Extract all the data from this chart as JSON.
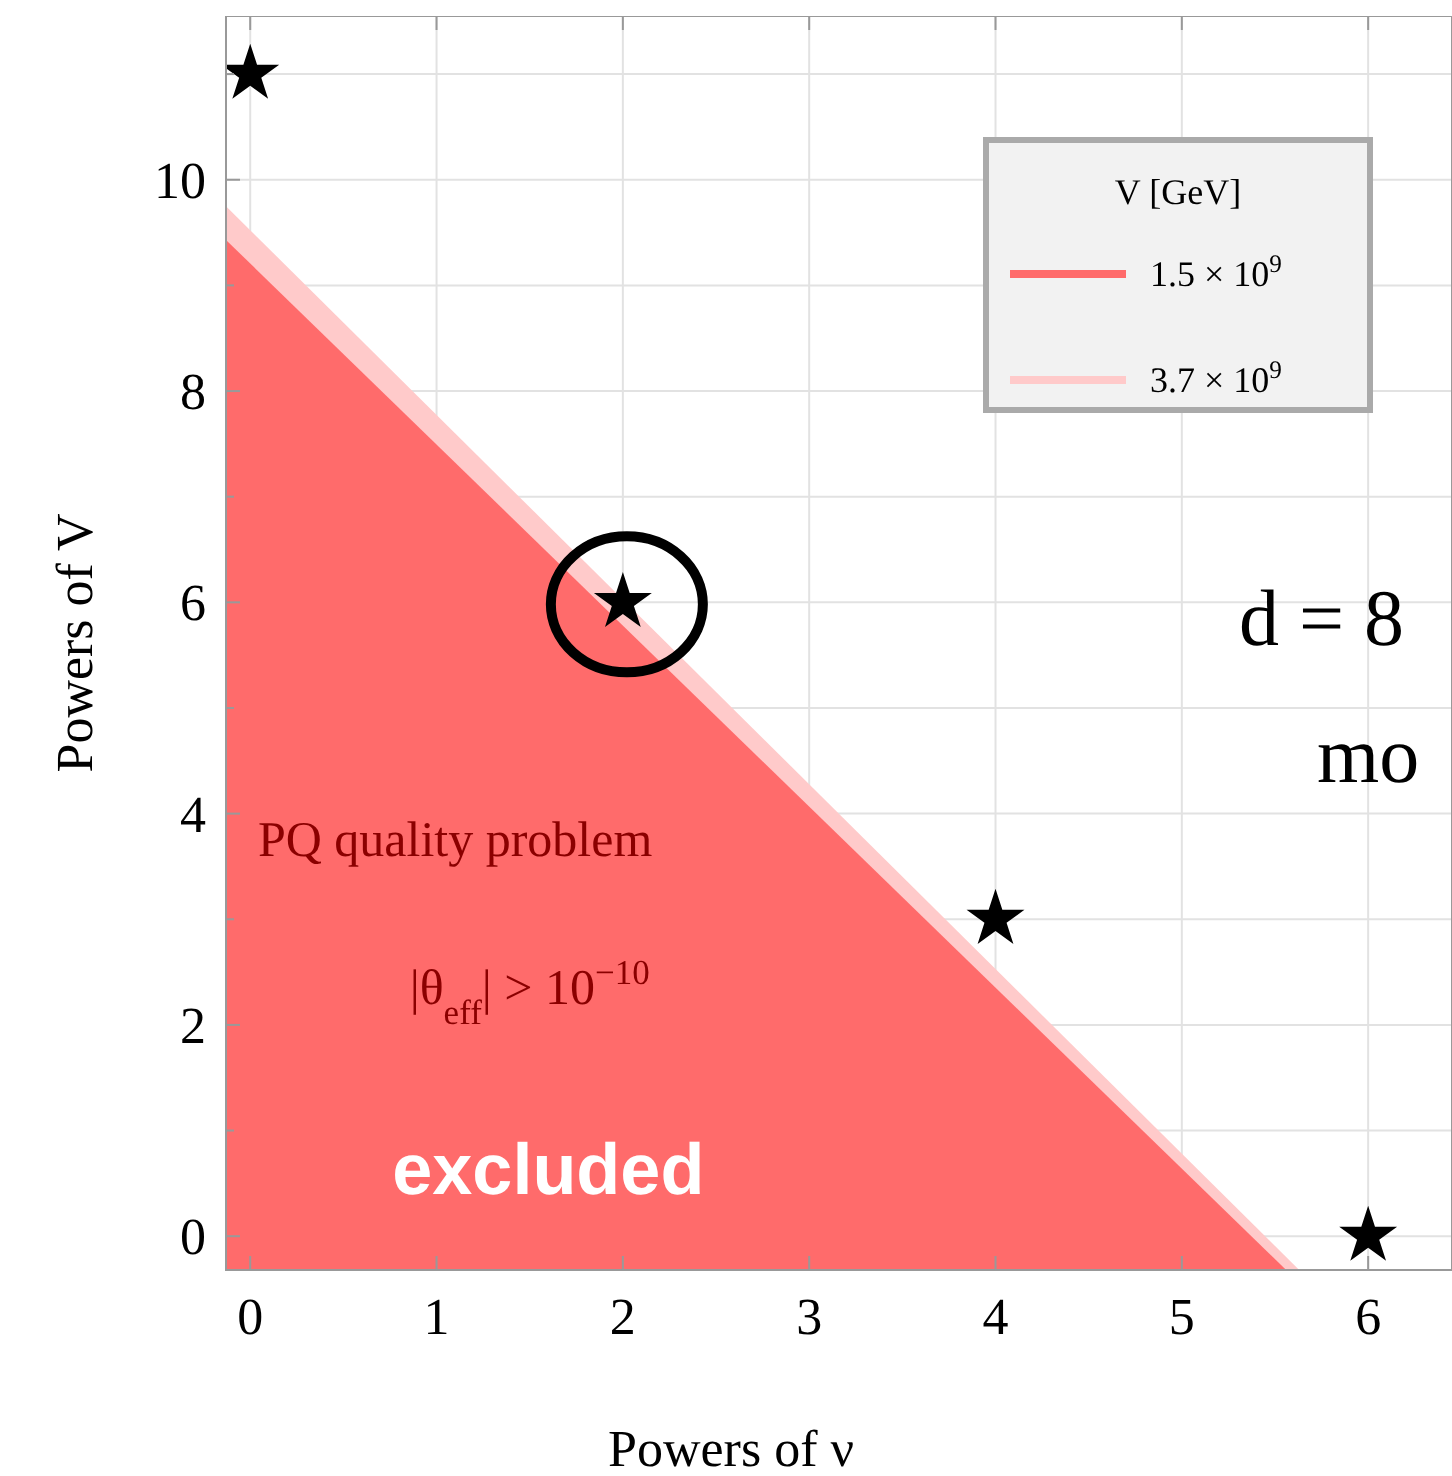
{
  "chart_data": {
    "type": "scatter",
    "xlabel": "Powers of ν",
    "ylabel": "Powers of V",
    "legend_title": "V [GeV]",
    "legend": "top right",
    "grid": true,
    "xlim": [
      -0.13,
      6.45
    ],
    "xticks": [
      0,
      1,
      2,
      3,
      4,
      5,
      6
    ],
    "ylim": [
      -0.32,
      11.55
    ],
    "yticks": [
      0,
      {
        "value": 1,
        "label": null
      },
      2,
      {
        "value": 3,
        "label": null
      },
      4,
      {
        "value": 5,
        "label": null
      },
      6,
      {
        "value": 7,
        "label": null
      },
      8,
      {
        "value": 9,
        "label": null
      },
      10,
      {
        "value": 11,
        "label": null
      }
    ],
    "series": [
      {
        "name": "3.7 × 10$^{9}$",
        "type": "area",
        "color": "#ffcaca",
        "x": [
          -0.13,
          5.63
        ],
        "values": [
          9.75,
          -0.32
        ]
      },
      {
        "name": "1.5 × 10$^{9}$",
        "type": "area",
        "color": "#ff6b6b",
        "x": [
          -0.13,
          5.56
        ],
        "values": [
          9.43,
          -0.32
        ]
      },
      {
        "color": "#000000",
        "marker": "star",
        "x": [
          0,
          2,
          4,
          6
        ],
        "values": [
          11,
          6,
          3,
          0
        ]
      }
    ],
    "annotations": [
      "PQ quality problem",
      "|θ$_{eff}$| > 10$^{−10}$",
      "excluded",
      "d = 8",
      "mo"
    ]
  }
}
